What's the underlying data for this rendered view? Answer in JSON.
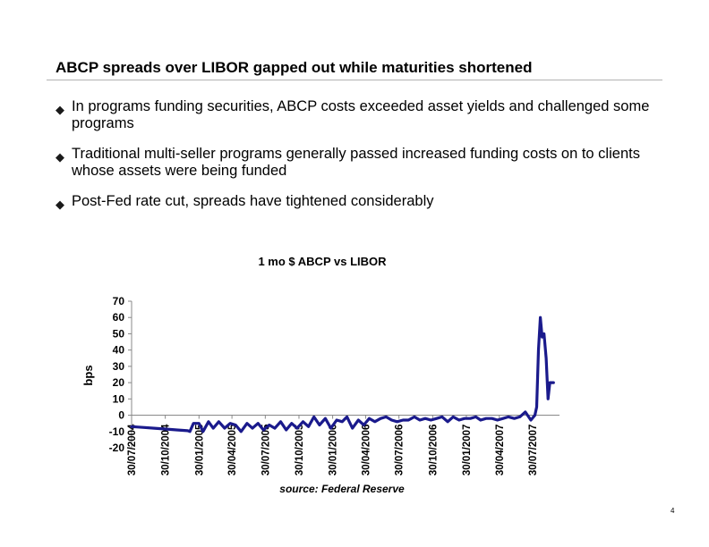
{
  "slide": {
    "title": "ABCP spreads over LIBOR gapped out while maturities shortened",
    "bullets": [
      {
        "text": "In programs funding securities, ABCP costs exceeded asset yields and challenged some programs",
        "icon": "diamond-bullet-icon"
      },
      {
        "text": "Traditional multi-seller programs generally passed increased funding costs on to clients whose assets were being funded",
        "icon": "diamond-bullet-icon"
      },
      {
        "text": "Post-Fed rate cut, spreads have tightened considerably",
        "icon": "diamond-bullet-icon"
      }
    ],
    "bullet_marker": "◆",
    "page_number": "4"
  },
  "chart_data": {
    "type": "line",
    "title": "1 mo $ ABCP vs LIBOR",
    "ylabel": "bps",
    "source": "source: Federal Reserve",
    "ylim": [
      -20,
      70
    ],
    "yticks": [
      -20,
      -10,
      0,
      10,
      20,
      30,
      40,
      50,
      60,
      70
    ],
    "xticks": [
      "30/07/2004",
      "30/10/2004",
      "30/01/2005",
      "30/04/2005",
      "30/07/2005",
      "30/10/2005",
      "30/01/2006",
      "30/04/2006",
      "30/07/2006",
      "30/10/2006",
      "30/01/2007",
      "30/04/2007",
      "30/07/2007"
    ],
    "series_color": "#1a1a8c",
    "grid": false,
    "series": [
      {
        "x": [
          "2004-07-30",
          "2004-08-30",
          "2004-09-30",
          "2004-10-30",
          "2004-11-30",
          "2004-12-30",
          "2005-01-05",
          "2005-01-15",
          "2005-01-30",
          "2005-02-10",
          "2005-02-25",
          "2005-03-10",
          "2005-03-25",
          "2005-04-10",
          "2005-04-25",
          "2005-05-10",
          "2005-05-25",
          "2005-06-10",
          "2005-06-25",
          "2005-07-10",
          "2005-07-25",
          "2005-08-10",
          "2005-08-25",
          "2005-09-10",
          "2005-09-25",
          "2005-10-10",
          "2005-10-25",
          "2005-11-10",
          "2005-11-25",
          "2005-12-10",
          "2005-12-25",
          "2006-01-10",
          "2006-01-25",
          "2006-02-10",
          "2006-02-25",
          "2006-03-10",
          "2006-03-25",
          "2006-04-10",
          "2006-04-25",
          "2006-05-10",
          "2006-05-25",
          "2006-06-10",
          "2006-06-25",
          "2006-07-10",
          "2006-07-25",
          "2006-08-10",
          "2006-08-25",
          "2006-09-10",
          "2006-09-25",
          "2006-10-10",
          "2006-10-25",
          "2006-11-10",
          "2006-11-25",
          "2006-12-10",
          "2006-12-25",
          "2007-01-10",
          "2007-01-25",
          "2007-02-10",
          "2007-02-25",
          "2007-03-10",
          "2007-03-25",
          "2007-04-10",
          "2007-04-25",
          "2007-05-10",
          "2007-05-25",
          "2007-06-10",
          "2007-06-25",
          "2007-07-10",
          "2007-07-25",
          "2007-08-05",
          "2007-08-10",
          "2007-08-15",
          "2007-08-20",
          "2007-08-25",
          "2007-08-30",
          "2007-09-05",
          "2007-09-10",
          "2007-09-15",
          "2007-09-20",
          "2007-09-25"
        ],
        "y": [
          -7,
          -7.5,
          -8,
          -8.5,
          -9,
          -9.5,
          -10,
          -5,
          -5,
          -10,
          -4,
          -8,
          -4,
          -8,
          -5,
          -6,
          -10,
          -5,
          -8,
          -5,
          -9,
          -6,
          -8,
          -4,
          -9,
          -5,
          -8,
          -4,
          -7,
          -1,
          -6,
          -2,
          -8,
          -3,
          -4,
          -1,
          -8,
          -3,
          -6,
          -2,
          -4,
          -2,
          -1,
          -3,
          -4,
          -3,
          -3,
          -1,
          -3,
          -2,
          -3,
          -2,
          -1,
          -4,
          -1,
          -3,
          -2,
          -2,
          -1,
          -3,
          -2,
          -2,
          -3,
          -2,
          -1,
          -2,
          -1,
          2,
          -3,
          0,
          5,
          40,
          60,
          48,
          50,
          35,
          10,
          20,
          20,
          20
        ]
      }
    ]
  }
}
